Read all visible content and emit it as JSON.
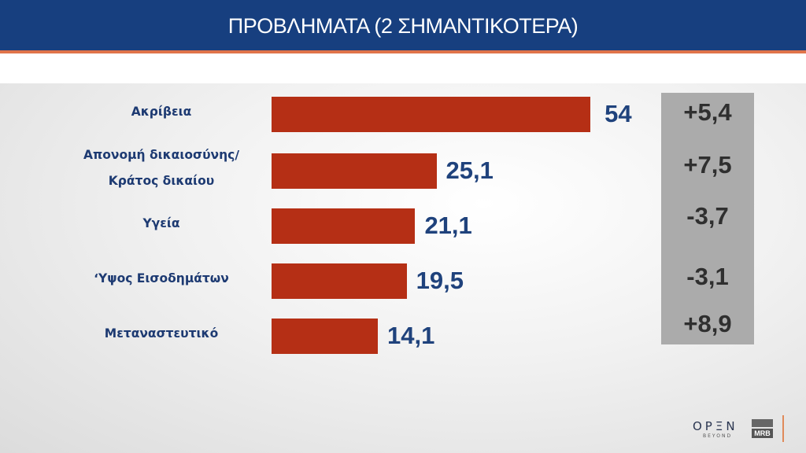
{
  "chart_data": {
    "type": "bar",
    "orientation": "horizontal",
    "title": "ΠΡΟΒΛΗΜΑΤΑ (2 ΣΗΜΑΝΤΙΚΟΤΕΡΑ)",
    "categories": [
      [
        "Ακρίβεια"
      ],
      [
        "Απονομή δικαιοσύνης/",
        "Κράτος δικαίου"
      ],
      [
        "Υγεία"
      ],
      [
        "‘Υψος Εισοδημάτων"
      ],
      [
        "Μεταναστευτικό"
      ]
    ],
    "values": [
      54,
      25.1,
      21.1,
      19.5,
      14.1
    ],
    "value_labels": [
      "54",
      "25,1",
      "21,1",
      "19,5",
      "14,1"
    ],
    "changes": [
      5.4,
      7.5,
      -3.7,
      -3.1,
      8.9
    ],
    "change_labels": [
      "+5,4",
      "+7,5",
      "-3,7",
      "-3,1",
      "+8,9"
    ],
    "grid": false,
    "colors": {
      "bar": "#b52f15",
      "value_text": "#1f427c",
      "change_box": "#ababab",
      "header": "#173f7f",
      "accent": "#e0744a"
    }
  },
  "logos": {
    "broadcaster": "OPEN",
    "broadcaster_sub": "BEYOND",
    "pollster": "MRB"
  }
}
